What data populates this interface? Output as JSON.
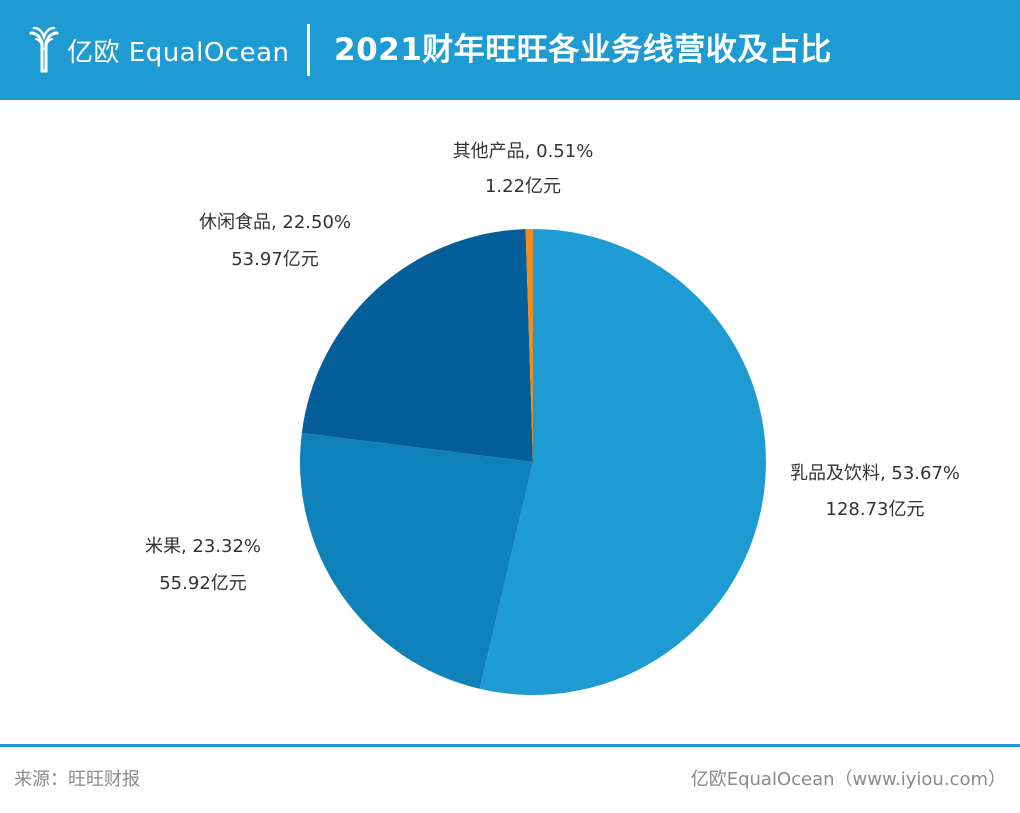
{
  "header": {
    "logo_text": "亿欧 EqualOcean",
    "title": "2021财年旺旺各业务线营收及占比"
  },
  "chart_data": {
    "type": "pie",
    "title": "2021财年旺旺各业务线营收及占比",
    "categories": [
      "乳品及饮料",
      "米果",
      "休闲食品",
      "其他产品"
    ],
    "values": [
      53.67,
      23.32,
      22.5,
      0.51
    ],
    "revenue_values": [
      128.73,
      55.92,
      53.97,
      1.22
    ],
    "revenue_unit": "亿元",
    "colors": [
      "#1f9bd3",
      "#0f82bb",
      "#045e99",
      "#f28c1d"
    ],
    "labels": [
      {
        "category": "乳品及饮料",
        "line1": "乳品及饮料, 53.67%",
        "line2": "128.73亿元"
      },
      {
        "category": "米果",
        "line1": "米果, 23.32%",
        "line2": "55.92亿元"
      },
      {
        "category": "休闲食品",
        "line1": "休闲食品, 22.50%",
        "line2": "53.97亿元"
      },
      {
        "category": "其他产品",
        "line1": "其他产品, 0.51%",
        "line2": "1.22亿元"
      }
    ]
  },
  "footer": {
    "source": "来源：旺旺财报",
    "brand": "亿欧EqualOcean（www.iyiou.com）"
  },
  "colors": {
    "brand_blue": "#1f9bd3",
    "footer_text": "#8a8a8a",
    "label_text": "#333333"
  }
}
